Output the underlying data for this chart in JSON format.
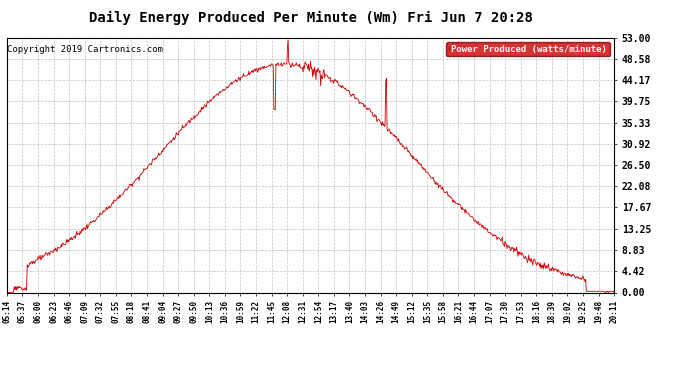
{
  "title": "Daily Energy Produced Per Minute (Wm) Fri Jun 7 20:28",
  "copyright": "Copyright 2019 Cartronics.com",
  "legend_label": "Power Produced (watts/minute)",
  "legend_bg": "#cc0000",
  "line_color": "#cc0000",
  "bg_color": "#ffffff",
  "plot_bg_color": "#ffffff",
  "grid_color": "#bbbbbb",
  "yticks": [
    0.0,
    4.42,
    8.83,
    13.25,
    17.67,
    22.08,
    26.5,
    30.92,
    35.33,
    39.75,
    44.17,
    48.58,
    53.0
  ],
  "ymax": 53.0,
  "ymin": 0.0,
  "ytick_labels": [
    "0.00",
    "4.42",
    "8.83",
    "13.25",
    "17.67",
    "22.08",
    "26.50",
    "30.92",
    "35.33",
    "39.75",
    "44.17",
    "48.58",
    "53.00"
  ],
  "x_tick_labels": [
    "05:14",
    "05:37",
    "06:00",
    "06:23",
    "06:46",
    "07:09",
    "07:32",
    "07:55",
    "08:18",
    "08:41",
    "09:04",
    "09:27",
    "09:50",
    "10:13",
    "10:36",
    "10:59",
    "11:22",
    "11:45",
    "12:08",
    "12:31",
    "12:54",
    "13:17",
    "13:40",
    "14:03",
    "14:26",
    "14:49",
    "15:12",
    "15:35",
    "15:58",
    "16:21",
    "16:44",
    "17:07",
    "17:30",
    "17:53",
    "18:16",
    "18:39",
    "19:02",
    "19:25",
    "19:48",
    "20:11"
  ],
  "title_fontsize": 10,
  "tick_fontsize": 7,
  "copyright_fontsize": 6.5
}
